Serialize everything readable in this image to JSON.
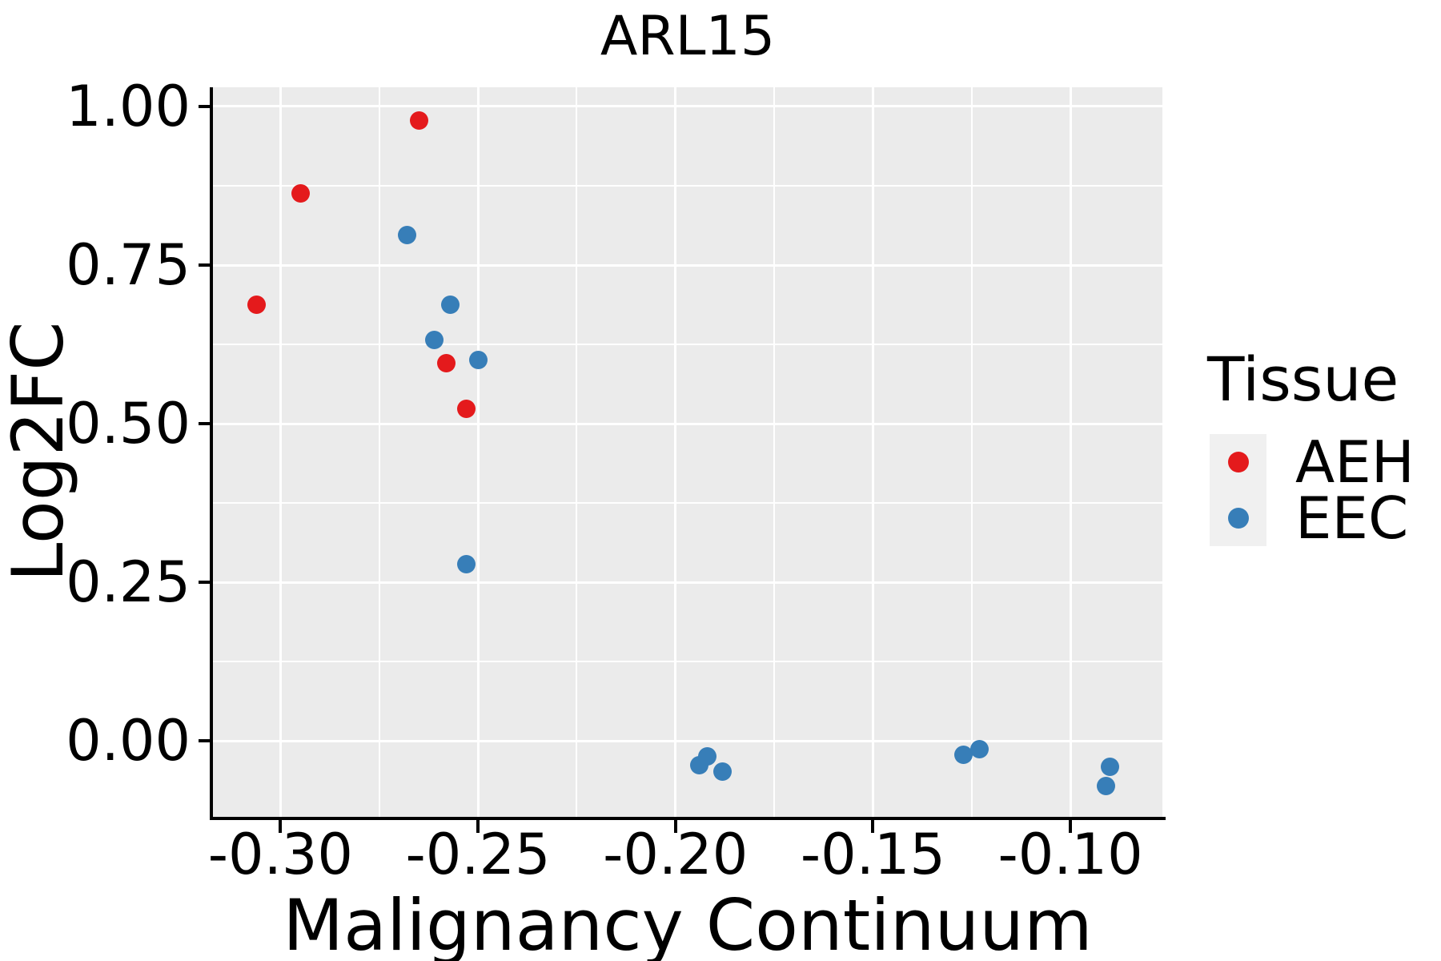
{
  "title": "ARL15",
  "axes": {
    "x": {
      "label": "Malignancy Continuum",
      "ticks": [
        -0.3,
        -0.25,
        -0.2,
        -0.15,
        -0.1
      ],
      "tick_labels": [
        "-0.30",
        "-0.25",
        "-0.20",
        "-0.15",
        "-0.10"
      ],
      "minor_ticks": [
        -0.275,
        -0.225,
        -0.175,
        -0.125
      ],
      "range": [
        -0.3171,
        -0.0767
      ]
    },
    "y": {
      "label": "Log2FC",
      "ticks": [
        0.0,
        0.25,
        0.5,
        0.75,
        1.0
      ],
      "tick_labels": [
        "0.00",
        "0.25",
        "0.50",
        "0.75",
        "1.00"
      ],
      "minor_ticks": [
        0.125,
        0.375,
        0.625,
        0.875
      ],
      "range": [
        -0.1199,
        1.0303
      ]
    }
  },
  "legend": {
    "title": "Tissue",
    "items": [
      {
        "label": "AEH",
        "color": "#E41A1C"
      },
      {
        "label": "EEC",
        "color": "#377EB8"
      }
    ]
  },
  "colors": {
    "panel_bg": "#EBEBEB",
    "grid": "#FFFFFF",
    "axis": "#000000",
    "legend_key_bg": "#F0F0F0",
    "aeh": "#E41A1C",
    "eec": "#377EB8"
  },
  "chart_data": {
    "type": "scatter",
    "title": "ARL15",
    "xlabel": "Malignancy Continuum",
    "ylabel": "Log2FC",
    "xlim": [
      -0.3171,
      -0.0767
    ],
    "ylim": [
      -0.1199,
      1.0303
    ],
    "grid": "major-and-minor",
    "legend_position": "right",
    "series": [
      {
        "name": "AEH",
        "color": "#E41A1C",
        "points": [
          [
            -0.265,
            0.978
          ],
          [
            -0.295,
            0.863
          ],
          [
            -0.306,
            0.687
          ],
          [
            -0.258,
            0.595
          ],
          [
            -0.253,
            0.524
          ]
        ]
      },
      {
        "name": "EEC",
        "color": "#377EB8",
        "points": [
          [
            -0.268,
            0.797
          ],
          [
            -0.257,
            0.688
          ],
          [
            -0.261,
            0.632
          ],
          [
            -0.25,
            0.6
          ],
          [
            -0.253,
            0.279
          ],
          [
            -0.194,
            -0.038
          ],
          [
            -0.192,
            -0.024
          ],
          [
            -0.188,
            -0.048
          ],
          [
            -0.127,
            -0.022
          ],
          [
            -0.123,
            -0.013
          ],
          [
            -0.091,
            -0.071
          ],
          [
            -0.09,
            -0.041
          ]
        ]
      }
    ]
  }
}
